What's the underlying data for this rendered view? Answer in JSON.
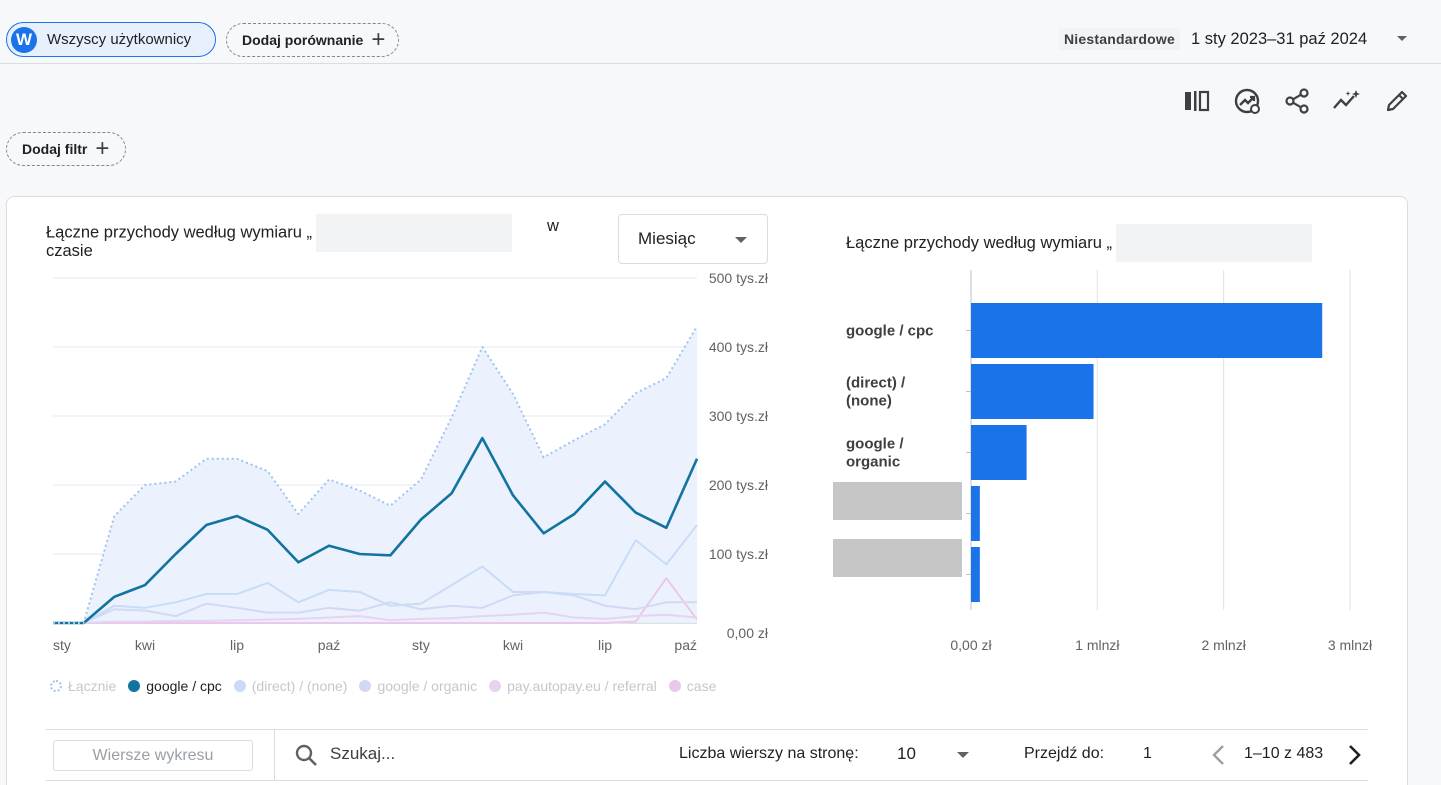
{
  "header": {
    "segment_avatar": "W",
    "segment_label": "Wszyscy użytkownicy",
    "add_comparison": "Dodaj porównanie",
    "date_preset": "Niestandardowe",
    "date_range": "1 sty 2023–31 paź 2024"
  },
  "toolbar": {
    "icons": [
      "compare-columns-icon",
      "insights-icon",
      "share-icon",
      "anomaly-icon",
      "edit-icon"
    ]
  },
  "filter": {
    "add_filter": "Dodaj filtr"
  },
  "line_chart": {
    "title_part1": "Łączne przychody według wymiaru „",
    "title_part2": "w",
    "title_part3": "czasie",
    "granularity": "Miesiąc"
  },
  "bar_chart": {
    "title": "Łączne przychody według wymiaru „"
  },
  "legend": [
    {
      "label": "Łącznie",
      "color": "#9fc3ee",
      "style": "dashed-ring"
    },
    {
      "label": "google / cpc",
      "color": "#12749e"
    },
    {
      "label": "(direct) / (none)",
      "color": "#c8dcf7"
    },
    {
      "label": "google / organic",
      "color": "#d3d8f3"
    },
    {
      "label": "pay.autopay.eu / referral",
      "color": "#e6d3f0"
    },
    {
      "label": "case",
      "color": "#e8c9ea"
    }
  ],
  "table_controls": {
    "rows_button": "Wiersze wykresu",
    "search_placeholder": "Szukaj...",
    "rows_per_page_label": "Liczba wierszy na stronę:",
    "rows_per_page_value": "10",
    "goto_label": "Przejdź do:",
    "goto_value": "1",
    "range_text": "1–10 z 483"
  },
  "chart_data": [
    {
      "type": "line",
      "x": [
        "sty 2023",
        "lut 2023",
        "mar 2023",
        "kwi 2023",
        "maj 2023",
        "cze 2023",
        "lip 2023",
        "sie 2023",
        "wrz 2023",
        "paź 2023",
        "lis 2023",
        "gru 2023",
        "sty 2024",
        "lut 2024",
        "mar 2024",
        "kwi 2024",
        "maj 2024",
        "cze 2024",
        "lip 2024",
        "sie 2024",
        "wrz 2024",
        "paź 2024"
      ],
      "xtick_labels": [
        "sty",
        "kwi",
        "lip",
        "paź",
        "sty",
        "kwi",
        "lip",
        "paź"
      ],
      "ytick_labels": [
        "0,00 zł",
        "100 tys.zł",
        "200 tys.zł",
        "300 tys.zł",
        "400 tys.zł",
        "500 tys.zł"
      ],
      "ylim": [
        0,
        500
      ],
      "y_unit": "tys. zł",
      "series": [
        {
          "name": "Łącznie",
          "values": [
            0,
            0,
            155,
            200,
            205,
            238,
            238,
            220,
            158,
            208,
            192,
            170,
            208,
            298,
            400,
            332,
            240,
            265,
            288,
            333,
            355,
            430
          ]
        },
        {
          "name": "google / cpc",
          "values": [
            0,
            0,
            38,
            55,
            100,
            142,
            155,
            135,
            88,
            112,
            100,
            98,
            150,
            188,
            268,
            185,
            130,
            158,
            205,
            160,
            138,
            238
          ]
        },
        {
          "name": "(direct) / (none)",
          "values": [
            0,
            0,
            25,
            22,
            30,
            42,
            42,
            58,
            30,
            48,
            45,
            25,
            28,
            55,
            82,
            45,
            45,
            42,
            40,
            120,
            85,
            142
          ]
        },
        {
          "name": "google / organic",
          "values": [
            0,
            0,
            20,
            18,
            10,
            28,
            22,
            15,
            15,
            22,
            18,
            30,
            20,
            25,
            22,
            40,
            45,
            40,
            25,
            20,
            30,
            30
          ]
        },
        {
          "name": "pay.autopay.eu / referral",
          "values": [
            0,
            0,
            2,
            2,
            3,
            3,
            4,
            5,
            6,
            8,
            10,
            4,
            6,
            7,
            10,
            12,
            15,
            8,
            6,
            10,
            12,
            8
          ]
        },
        {
          "name": "case",
          "values": [
            0,
            0,
            0,
            0,
            0,
            0,
            0,
            0,
            0,
            0,
            0,
            0,
            0,
            0,
            0,
            0,
            0,
            0,
            0,
            2,
            65,
            5
          ]
        }
      ]
    },
    {
      "type": "bar",
      "orientation": "horizontal",
      "categories": [
        "google / cpc",
        "(direct) / (none)",
        "google / organic",
        "",
        ""
      ],
      "category_lines": [
        [
          "google / cpc"
        ],
        [
          "(direct) /",
          "(none)"
        ],
        [
          "google /",
          "organic"
        ],
        [],
        []
      ],
      "values": [
        2.78,
        0.97,
        0.44,
        0.07,
        0.07
      ],
      "xlim": [
        0,
        3
      ],
      "xtick_labels": [
        "0,00 zł",
        "1 mlnzł",
        "2 mlnzł",
        "3 mlnzł"
      ],
      "x_unit": "mln zł",
      "bar_color": "#1a73e8"
    }
  ]
}
